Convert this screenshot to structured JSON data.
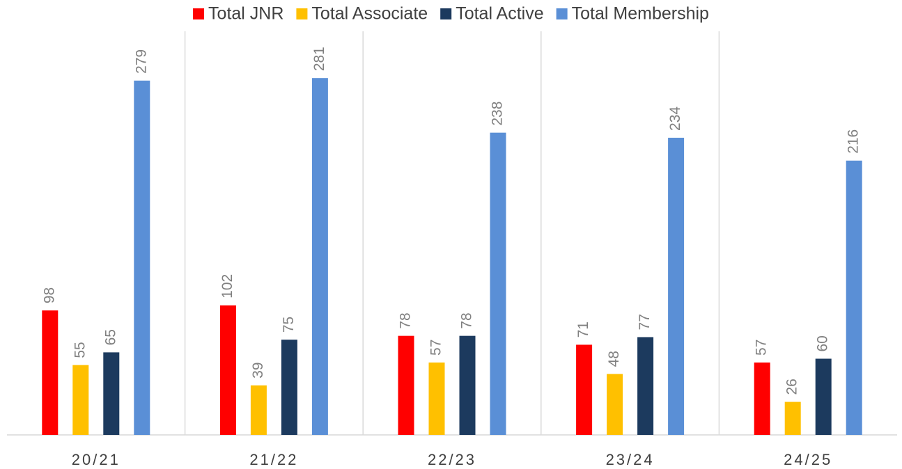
{
  "chart_data": {
    "type": "bar",
    "categories": [
      "20/21",
      "21/22",
      "22/23",
      "23/24",
      "24/25"
    ],
    "series": [
      {
        "name": "Total JNR",
        "color": "#ff0000",
        "values": [
          98,
          102,
          78,
          71,
          57
        ]
      },
      {
        "name": "Total Associate",
        "color": "#ffc000",
        "values": [
          55,
          39,
          57,
          48,
          26
        ]
      },
      {
        "name": "Total Active",
        "color": "#1c3a5e",
        "values": [
          65,
          75,
          78,
          77,
          60
        ]
      },
      {
        "name": "Total Membership",
        "color": "#5a8fd6",
        "values": [
          279,
          281,
          238,
          234,
          216
        ]
      }
    ],
    "legend": "top",
    "data_labels": true
  }
}
